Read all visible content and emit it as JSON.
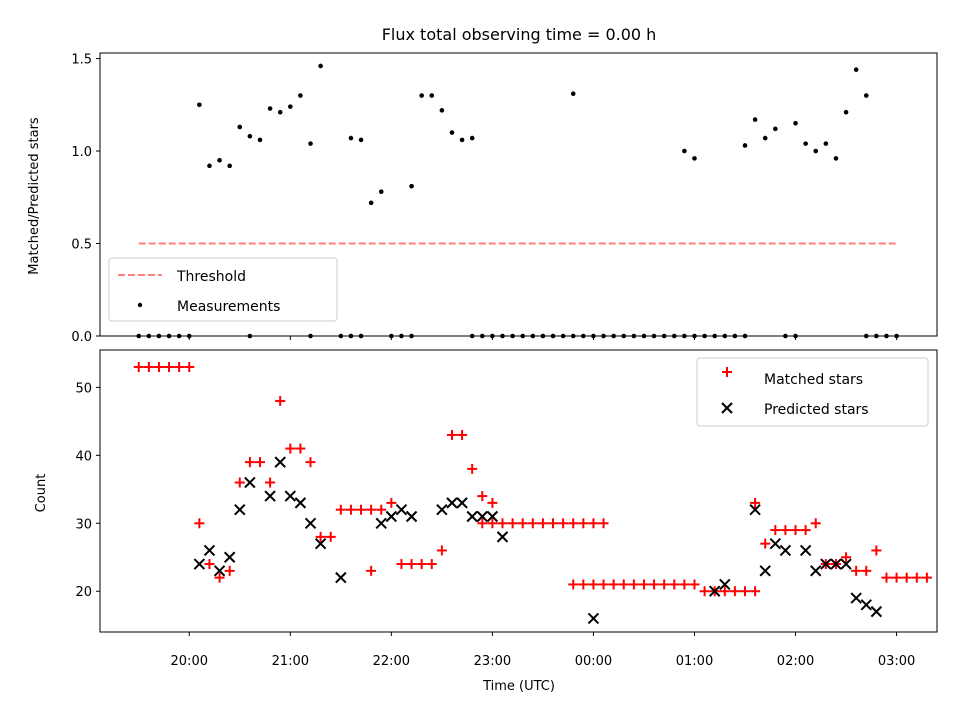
{
  "chart_data": [
    {
      "type": "scatter",
      "title": "Flux total observing time = 0.00 h",
      "xlabel": "",
      "ylabel": "Matched/Predicted stars",
      "ylim": [
        0,
        1.53
      ],
      "xlim": [
        "19:07",
        "03:24"
      ],
      "yticks": [
        "0.0",
        "0.5",
        "1.0",
        "1.5"
      ],
      "threshold": {
        "name": "Threshold",
        "value": 0.5,
        "x": [
          "19:30",
          "03:00"
        ],
        "color": "#ff7f7f"
      },
      "legend": {
        "placement": "lower-left",
        "entries": [
          "Threshold",
          "Measurements"
        ]
      },
      "series": [
        {
          "name": "Measurements",
          "color": "#000000",
          "marker": "dot",
          "points": [
            [
              "19:30",
              0
            ],
            [
              "19:36",
              0
            ],
            [
              "19:42",
              0
            ],
            [
              "19:48",
              0
            ],
            [
              "19:54",
              0
            ],
            [
              "20:00",
              0
            ],
            [
              "20:06",
              1.25
            ],
            [
              "20:12",
              0.92
            ],
            [
              "20:18",
              0.95
            ],
            [
              "20:24",
              0.92
            ],
            [
              "20:30",
              1.13
            ],
            [
              "20:36",
              1.08
            ],
            [
              "20:36",
              0
            ],
            [
              "20:42",
              1.06
            ],
            [
              "20:48",
              1.23
            ],
            [
              "20:54",
              1.21
            ],
            [
              "21:00",
              1.24
            ],
            [
              "21:06",
              1.3
            ],
            [
              "21:12",
              1.04
            ],
            [
              "21:12",
              0
            ],
            [
              "21:18",
              1.46
            ],
            [
              "21:30",
              0
            ],
            [
              "21:36",
              0
            ],
            [
              "21:42",
              0
            ],
            [
              "21:36",
              1.07
            ],
            [
              "21:42",
              1.06
            ],
            [
              "21:48",
              0.72
            ],
            [
              "21:54",
              0.78
            ],
            [
              "22:00",
              0
            ],
            [
              "22:06",
              0
            ],
            [
              "22:12",
              0
            ],
            [
              "22:12",
              0.81
            ],
            [
              "22:18",
              1.3
            ],
            [
              "22:24",
              1.3
            ],
            [
              "22:30",
              1.22
            ],
            [
              "22:36",
              1.1
            ],
            [
              "22:42",
              1.06
            ],
            [
              "22:48",
              1.07
            ],
            [
              "22:48",
              0
            ],
            [
              "22:54",
              0
            ],
            [
              "23:00",
              0
            ],
            [
              "23:06",
              0
            ],
            [
              "23:12",
              0
            ],
            [
              "23:18",
              0
            ],
            [
              "23:24",
              0
            ],
            [
              "23:30",
              0
            ],
            [
              "23:36",
              0
            ],
            [
              "23:42",
              0
            ],
            [
              "23:48",
              0
            ],
            [
              "23:48",
              1.31
            ],
            [
              "23:54",
              0
            ],
            [
              "00:00",
              0
            ],
            [
              "00:06",
              0
            ],
            [
              "00:12",
              0
            ],
            [
              "00:18",
              0
            ],
            [
              "00:24",
              0
            ],
            [
              "00:30",
              0
            ],
            [
              "00:36",
              0
            ],
            [
              "00:42",
              0
            ],
            [
              "00:48",
              0
            ],
            [
              "00:54",
              0
            ],
            [
              "01:00",
              0
            ],
            [
              "00:54",
              1.0
            ],
            [
              "01:00",
              0.96
            ],
            [
              "01:06",
              0
            ],
            [
              "01:12",
              0
            ],
            [
              "01:18",
              0
            ],
            [
              "01:24",
              0
            ],
            [
              "01:30",
              0
            ],
            [
              "01:30",
              1.03
            ],
            [
              "01:36",
              1.17
            ],
            [
              "01:42",
              1.07
            ],
            [
              "01:48",
              1.12
            ],
            [
              "01:54",
              0
            ],
            [
              "02:00",
              0
            ],
            [
              "02:00",
              1.15
            ],
            [
              "02:06",
              1.04
            ],
            [
              "02:12",
              1.0
            ],
            [
              "02:18",
              1.04
            ],
            [
              "02:24",
              0.96
            ],
            [
              "02:30",
              1.21
            ],
            [
              "02:36",
              1.44
            ],
            [
              "02:42",
              1.3
            ],
            [
              "02:42",
              0
            ],
            [
              "02:48",
              0
            ],
            [
              "02:54",
              0
            ],
            [
              "03:00",
              0
            ]
          ]
        }
      ]
    },
    {
      "type": "scatter",
      "title": "",
      "xlabel": "Time (UTC)",
      "ylabel": "Count",
      "ylim": [
        14,
        55.5
      ],
      "xlim": [
        "19:07",
        "03:24"
      ],
      "xticks": [
        "20:00",
        "21:00",
        "22:00",
        "23:00",
        "00:00",
        "01:00",
        "02:00",
        "03:00"
      ],
      "yticks": [
        "20",
        "30",
        "40",
        "50"
      ],
      "legend": {
        "placement": "top-right",
        "entries": [
          "Matched stars",
          "Predicted stars"
        ]
      },
      "series": [
        {
          "name": "Matched stars",
          "color": "#ff0000",
          "marker": "plus",
          "points": [
            [
              "19:30",
              53
            ],
            [
              "19:36",
              53
            ],
            [
              "19:42",
              53
            ],
            [
              "19:48",
              53
            ],
            [
              "19:54",
              53
            ],
            [
              "20:00",
              53
            ],
            [
              "20:06",
              30
            ],
            [
              "20:12",
              24
            ],
            [
              "20:18",
              22
            ],
            [
              "20:24",
              23
            ],
            [
              "20:30",
              36
            ],
            [
              "20:36",
              39
            ],
            [
              "20:42",
              39
            ],
            [
              "20:48",
              36
            ],
            [
              "20:54",
              48
            ],
            [
              "21:00",
              41
            ],
            [
              "21:06",
              41
            ],
            [
              "21:12",
              39
            ],
            [
              "21:18",
              28
            ],
            [
              "21:24",
              28
            ],
            [
              "21:30",
              32
            ],
            [
              "21:36",
              32
            ],
            [
              "21:42",
              32
            ],
            [
              "21:48",
              32
            ],
            [
              "21:54",
              32
            ],
            [
              "22:00",
              33
            ],
            [
              "21:48",
              23
            ],
            [
              "22:06",
              24
            ],
            [
              "22:12",
              24
            ],
            [
              "22:18",
              24
            ],
            [
              "22:24",
              24
            ],
            [
              "22:30",
              26
            ],
            [
              "22:36",
              43
            ],
            [
              "22:42",
              43
            ],
            [
              "22:48",
              38
            ],
            [
              "22:54",
              34
            ],
            [
              "23:00",
              33
            ],
            [
              "22:54",
              30
            ],
            [
              "23:00",
              30
            ],
            [
              "23:06",
              30
            ],
            [
              "23:12",
              30
            ],
            [
              "23:18",
              30
            ],
            [
              "23:24",
              30
            ],
            [
              "23:30",
              30
            ],
            [
              "23:36",
              30
            ],
            [
              "23:42",
              30
            ],
            [
              "23:48",
              30
            ],
            [
              "23:54",
              30
            ],
            [
              "00:00",
              30
            ],
            [
              "00:06",
              30
            ],
            [
              "23:48",
              21
            ],
            [
              "23:54",
              21
            ],
            [
              "00:00",
              21
            ],
            [
              "00:06",
              21
            ],
            [
              "00:12",
              21
            ],
            [
              "00:18",
              21
            ],
            [
              "00:24",
              21
            ],
            [
              "00:30",
              21
            ],
            [
              "00:36",
              21
            ],
            [
              "00:42",
              21
            ],
            [
              "00:48",
              21
            ],
            [
              "00:54",
              21
            ],
            [
              "01:00",
              21
            ],
            [
              "01:06",
              20
            ],
            [
              "01:12",
              20
            ],
            [
              "01:18",
              20
            ],
            [
              "01:24",
              20
            ],
            [
              "01:30",
              20
            ],
            [
              "01:36",
              20
            ],
            [
              "01:36",
              33
            ],
            [
              "01:42",
              27
            ],
            [
              "01:48",
              29
            ],
            [
              "01:54",
              29
            ],
            [
              "02:00",
              29
            ],
            [
              "02:06",
              29
            ],
            [
              "02:12",
              30
            ],
            [
              "02:18",
              24
            ],
            [
              "02:24",
              24
            ],
            [
              "02:30",
              25
            ],
            [
              "02:36",
              23
            ],
            [
              "02:42",
              23
            ],
            [
              "02:48",
              26
            ],
            [
              "02:54",
              22
            ],
            [
              "03:00",
              22
            ],
            [
              "03:06",
              22
            ],
            [
              "03:12",
              22
            ],
            [
              "03:18",
              22
            ]
          ]
        },
        {
          "name": "Predicted stars",
          "color": "#000000",
          "marker": "x",
          "points": [
            [
              "20:06",
              24
            ],
            [
              "20:12",
              26
            ],
            [
              "20:18",
              23
            ],
            [
              "20:24",
              25
            ],
            [
              "20:30",
              32
            ],
            [
              "20:36",
              36
            ],
            [
              "20:48",
              34
            ],
            [
              "20:54",
              39
            ],
            [
              "21:00",
              34
            ],
            [
              "21:06",
              33
            ],
            [
              "21:12",
              30
            ],
            [
              "21:18",
              27
            ],
            [
              "21:30",
              22
            ],
            [
              "21:54",
              30
            ],
            [
              "22:00",
              31
            ],
            [
              "22:06",
              32
            ],
            [
              "22:12",
              31
            ],
            [
              "22:30",
              32
            ],
            [
              "22:36",
              33
            ],
            [
              "22:42",
              33
            ],
            [
              "22:48",
              31
            ],
            [
              "22:54",
              31
            ],
            [
              "23:00",
              31
            ],
            [
              "23:06",
              28
            ],
            [
              "00:00",
              16
            ],
            [
              "01:12",
              20
            ],
            [
              "01:18",
              21
            ],
            [
              "01:36",
              32
            ],
            [
              "01:42",
              23
            ],
            [
              "01:48",
              27
            ],
            [
              "01:54",
              26
            ],
            [
              "02:06",
              26
            ],
            [
              "02:12",
              23
            ],
            [
              "02:18",
              24
            ],
            [
              "02:24",
              24
            ],
            [
              "02:30",
              24
            ],
            [
              "02:36",
              19
            ],
            [
              "02:42",
              18
            ],
            [
              "02:48",
              17
            ]
          ]
        }
      ]
    }
  ]
}
